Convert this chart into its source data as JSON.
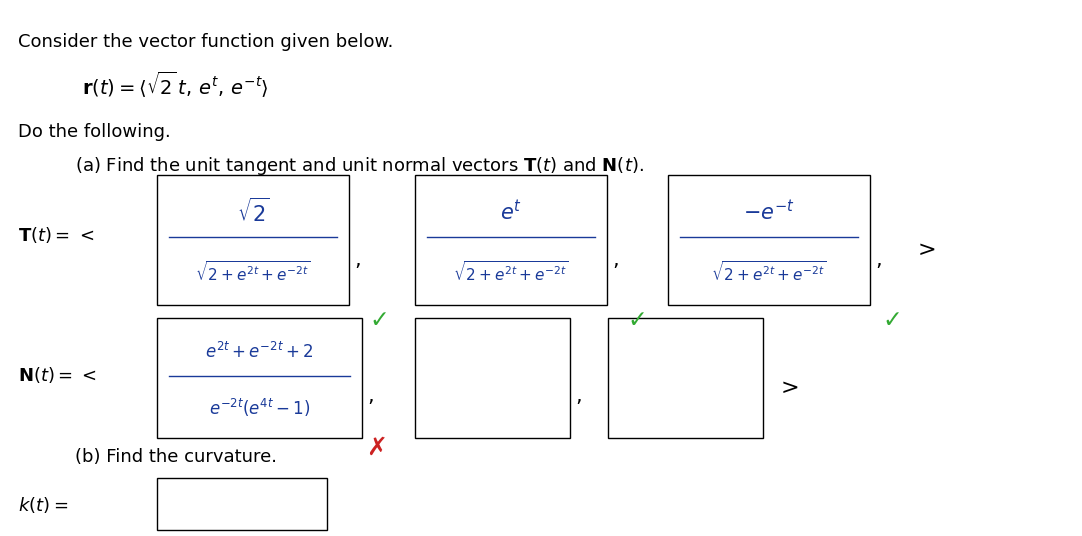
{
  "bg_color": "#ffffff",
  "fig_w": 10.82,
  "fig_h": 5.36,
  "dpi": 100,
  "fs_text": 13,
  "fs_math": 13,
  "fs_eq": 14,
  "text_color": "#000000",
  "math_color": "#1a3a99",
  "green_color": "#33aa33",
  "red_color": "#cc2222",
  "box_color": "#000000",
  "line1": "Consider the vector function given below.",
  "line_r": "$\\mathbf{r}(t) = \\langle\\sqrt{2}\\,t,\\, e^{t},\\, e^{-t}\\rangle$",
  "line_do": "Do the following.",
  "line_a": "(a) Find the unit tangent and unit normal vectors $\\mathbf{T}(t)$ and $\\mathbf{N}(t)$.",
  "line_b": "(b) Find the curvature.",
  "label_T": "$\\mathbf{T}(t) = $<",
  "label_N": "$\\mathbf{N}(t) = $<",
  "label_k": "$k(t) =$",
  "box1_num": "$\\sqrt{2}$",
  "box1_den": "$\\sqrt{2 + e^{2t} + e^{-2t}}$",
  "box2_num": "$e^{t}$",
  "box2_den": "$\\sqrt{2 + e^{2t} + e^{-2t}}$",
  "box3_num": "$-e^{-t}$",
  "box3_den": "$\\sqrt{2 + e^{2t} + e^{-2t}}$",
  "box4_num": "$e^{2t} + e^{-2t} + 2$",
  "box4_den": "$e^{-2t}(e^{4t} - 1)$"
}
